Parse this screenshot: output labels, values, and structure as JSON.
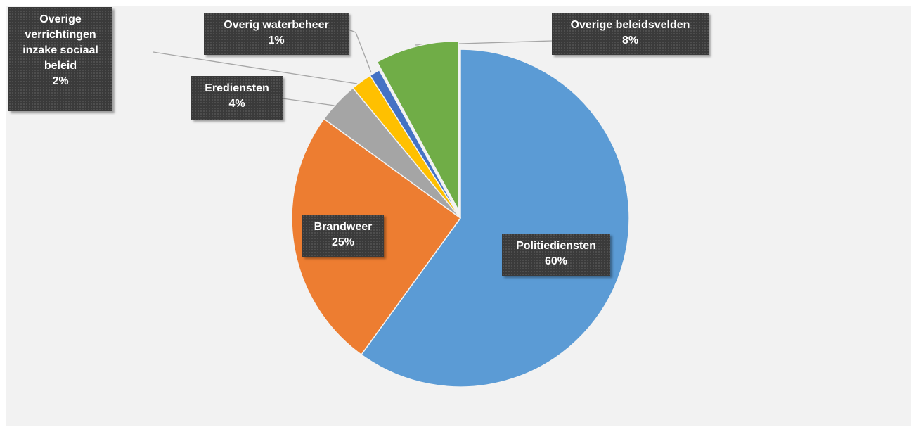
{
  "chart_data": {
    "type": "pie",
    "categories": [
      "Politiediensten",
      "Brandweer",
      "Erediensten",
      "Overige verrichtingen inzake sociaal beleid",
      "Overig waterbeheer",
      "Overige beleidsvelden"
    ],
    "values": [
      60,
      25,
      4,
      2,
      1,
      8
    ],
    "value_labels": [
      "60%",
      "25%",
      "4%",
      "2%",
      "1%",
      "8%"
    ],
    "colors": [
      "#5b9bd5",
      "#ed7d31",
      "#a5a5a5",
      "#ffc000",
      "#4472c4",
      "#70ad47"
    ]
  }
}
